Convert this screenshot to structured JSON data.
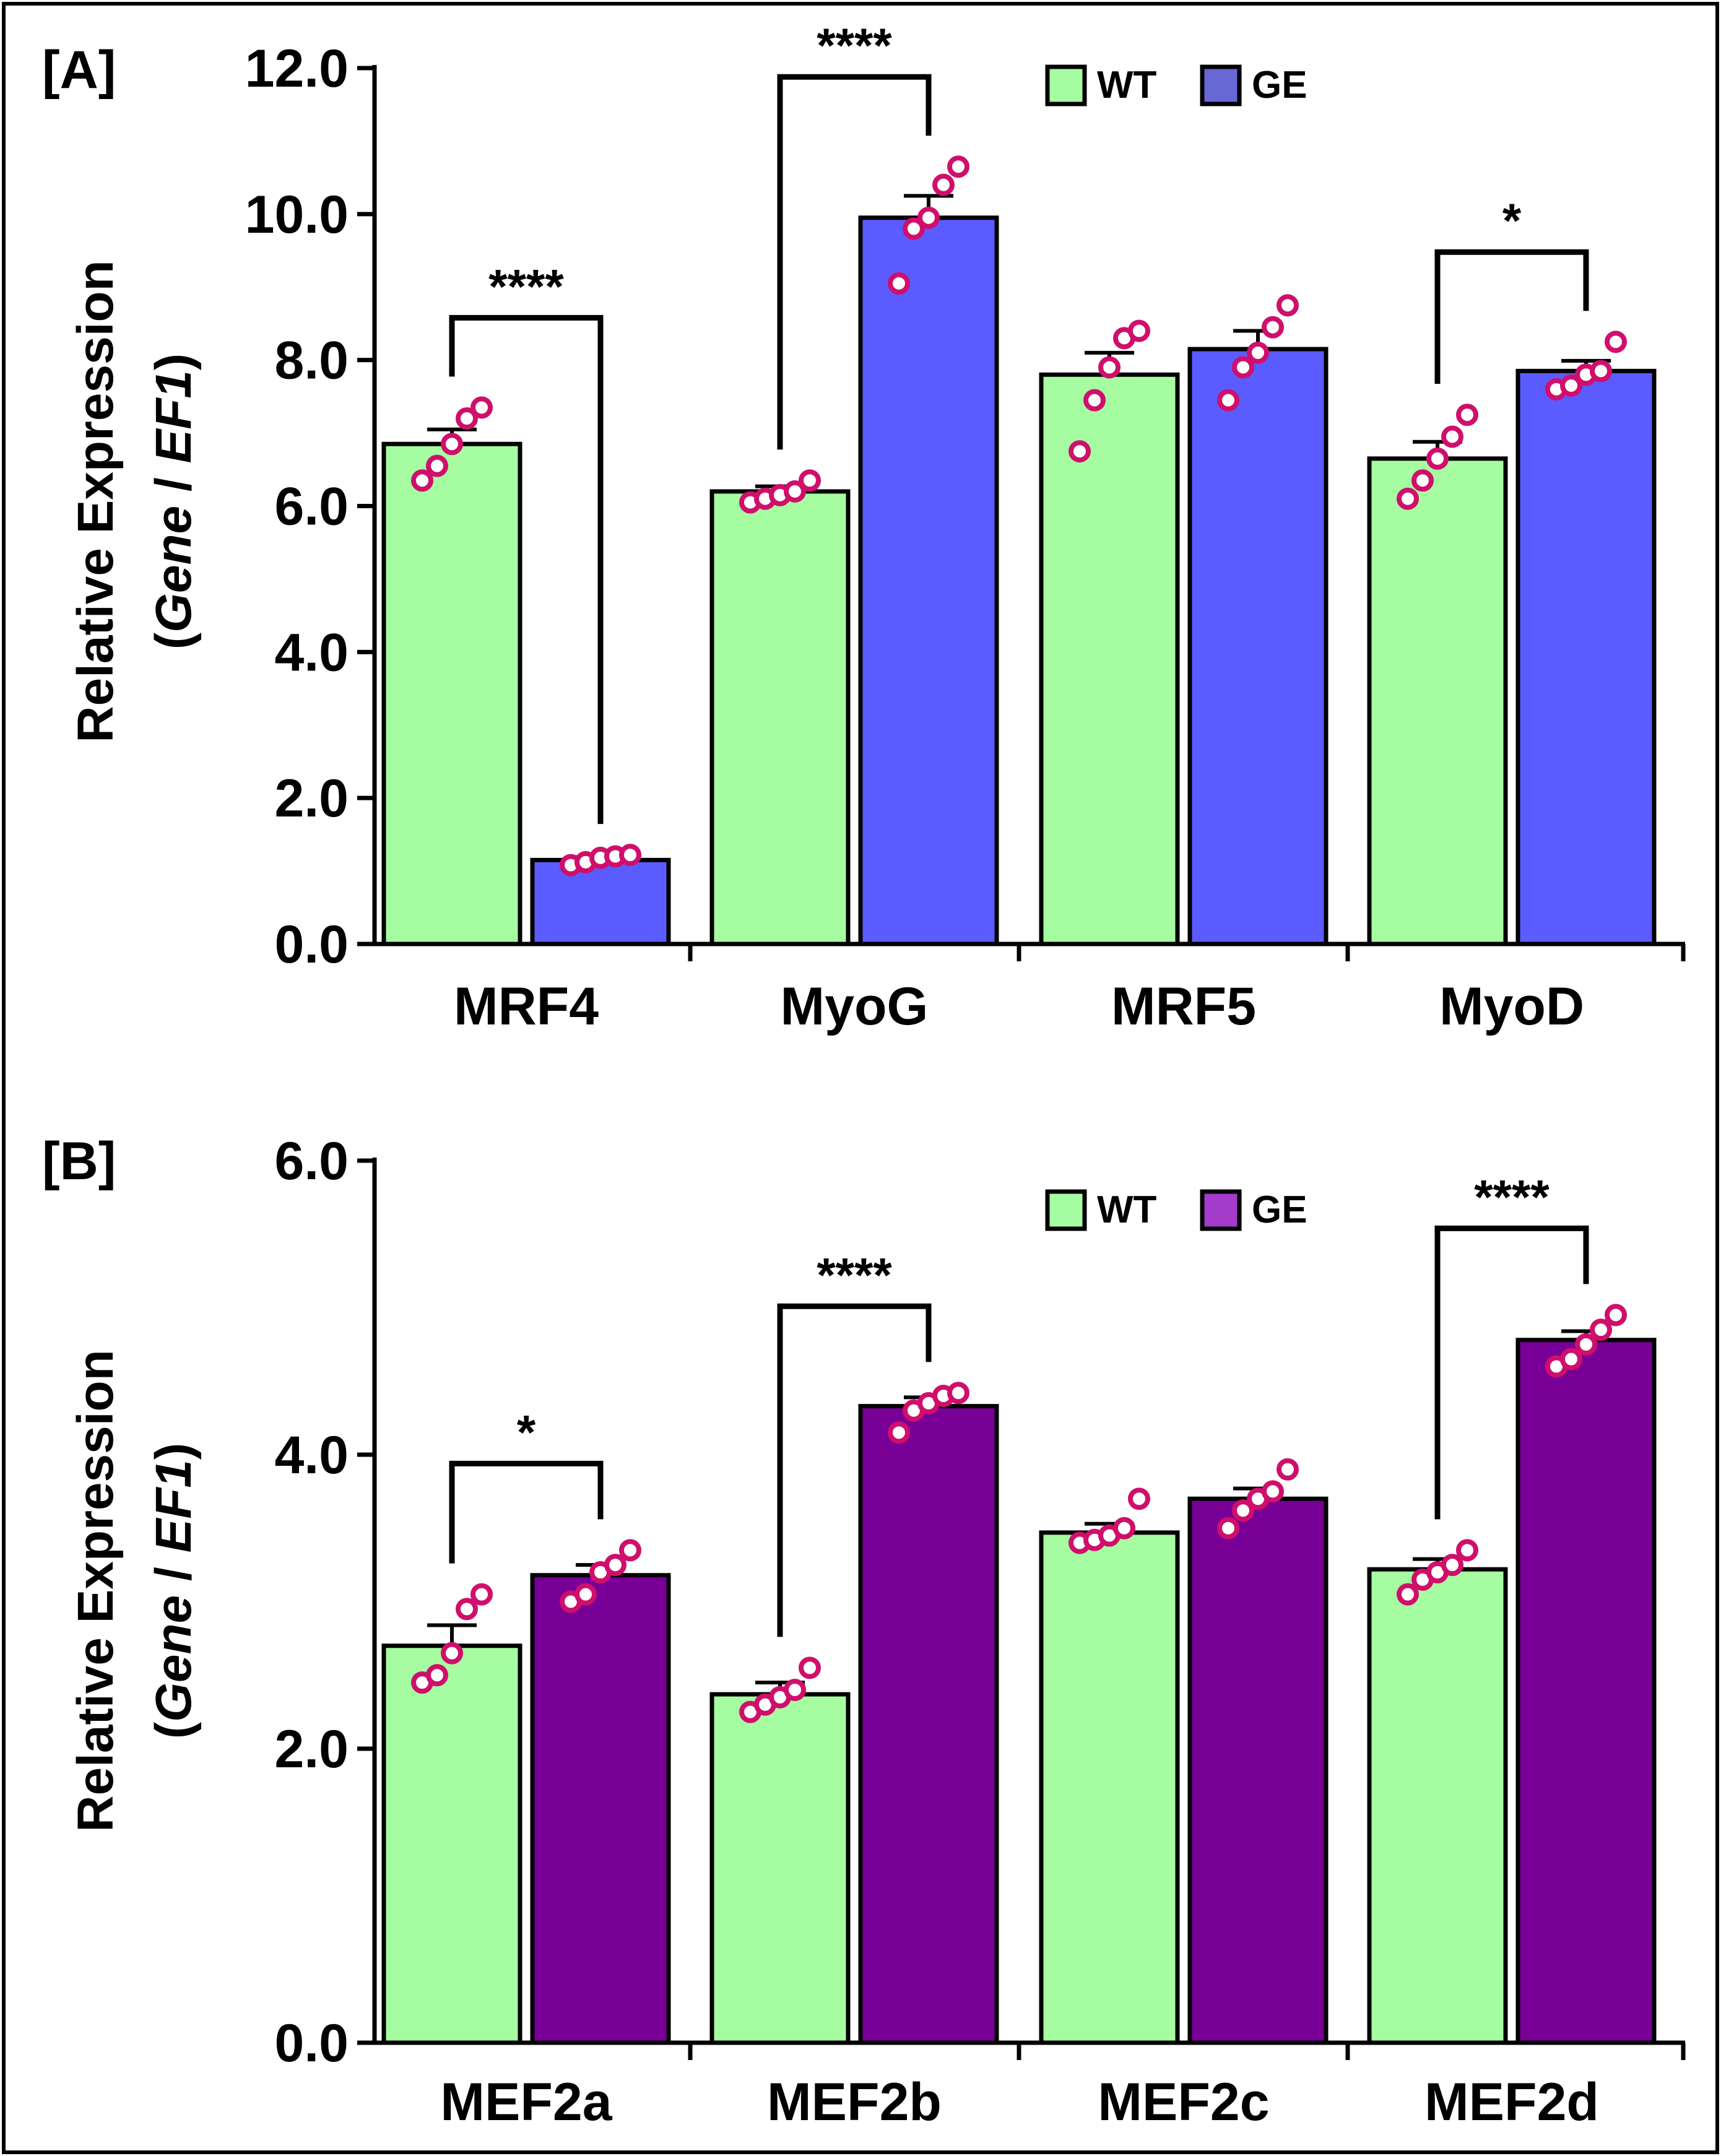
{
  "colors": {
    "wt": "#a6fca0",
    "ge_a": "#5b5cff",
    "ge_b": "#790097",
    "legend_ge_a": "#6867d6",
    "legend_ge_b": "#a43bcb",
    "dot": "#cf0f6b"
  },
  "chart_data": [
    {
      "type": "bar",
      "panel_label": "[A]",
      "ylabel_line1": "Relative Expression",
      "ylabel_line2_open": "(",
      "ylabel_line2_gene": "Gene",
      "ylabel_line2_sep": " / ",
      "ylabel_line2_ef": "EF1",
      "ylabel_line2_close": ")",
      "ylim": [
        0,
        12
      ],
      "yticks": [
        0,
        2,
        4,
        6,
        8,
        10,
        12
      ],
      "ytick_labels": [
        "0.0",
        "2.0",
        "4.0",
        "6.0",
        "8.0",
        "10.0",
        "12.0"
      ],
      "legend": {
        "wt": "WT",
        "ge": "GE"
      },
      "categories": [
        "MRF4",
        "MyoG",
        "MRF5",
        "MyoD"
      ],
      "series": [
        {
          "name": "WT",
          "values": [
            6.85,
            6.2,
            7.8,
            6.65
          ],
          "sem": [
            0.2,
            0.07,
            0.3,
            0.23
          ],
          "points": [
            [
              6.35,
              6.55,
              6.85,
              7.2,
              7.35
            ],
            [
              6.05,
              6.1,
              6.15,
              6.2,
              6.35
            ],
            [
              6.75,
              7.45,
              7.9,
              8.3,
              8.4
            ],
            [
              6.1,
              6.35,
              6.65,
              6.95,
              7.25
            ]
          ]
        },
        {
          "name": "GE",
          "values": [
            1.15,
            9.95,
            8.15,
            7.85
          ],
          "sem": [
            0.04,
            0.3,
            0.25,
            0.14
          ],
          "points": [
            [
              1.08,
              1.12,
              1.18,
              1.2,
              1.22
            ],
            [
              9.05,
              9.8,
              9.95,
              10.4,
              10.65
            ],
            [
              7.45,
              7.9,
              8.1,
              8.45,
              8.75
            ],
            [
              7.6,
              7.65,
              7.8,
              7.85,
              8.25
            ]
          ]
        }
      ],
      "significance": [
        {
          "category": 0,
          "label": "****"
        },
        {
          "category": 1,
          "label": "****"
        },
        {
          "category": 3,
          "label": "*"
        }
      ]
    },
    {
      "type": "bar",
      "panel_label": "[B]",
      "ylabel_line1": "Relative Expression",
      "ylabel_line2_open": "(",
      "ylabel_line2_gene": "Gene",
      "ylabel_line2_sep": " / ",
      "ylabel_line2_ef": "EF1",
      "ylabel_line2_close": ")",
      "ylim": [
        0,
        6
      ],
      "yticks": [
        0,
        2,
        4,
        6
      ],
      "ytick_labels": [
        "0.0",
        "2.0",
        "4.0",
        "6.0"
      ],
      "legend": {
        "wt": "WT",
        "ge": "GE"
      },
      "categories": [
        "MEF2a",
        "MEF2b",
        "MEF2c",
        "MEF2d"
      ],
      "series": [
        {
          "name": "WT",
          "values": [
            2.7,
            2.37,
            3.47,
            3.22
          ],
          "sem": [
            0.14,
            0.08,
            0.06,
            0.07
          ],
          "points": [
            [
              2.45,
              2.5,
              2.65,
              2.95,
              3.05
            ],
            [
              2.25,
              2.3,
              2.35,
              2.4,
              2.55
            ],
            [
              3.4,
              3.42,
              3.45,
              3.5,
              3.7
            ],
            [
              3.05,
              3.15,
              3.2,
              3.25,
              3.35
            ]
          ]
        },
        {
          "name": "GE",
          "values": [
            3.18,
            4.33,
            3.7,
            4.78
          ],
          "sem": [
            0.07,
            0.06,
            0.07,
            0.06
          ],
          "points": [
            [
              3.0,
              3.05,
              3.2,
              3.25,
              3.35
            ],
            [
              4.15,
              4.3,
              4.35,
              4.4,
              4.42
            ],
            [
              3.5,
              3.62,
              3.7,
              3.75,
              3.9
            ],
            [
              4.6,
              4.65,
              4.75,
              4.85,
              4.95
            ]
          ]
        }
      ],
      "significance": [
        {
          "category": 0,
          "label": "*"
        },
        {
          "category": 1,
          "label": "****"
        },
        {
          "category": 3,
          "label": "****"
        }
      ]
    }
  ]
}
